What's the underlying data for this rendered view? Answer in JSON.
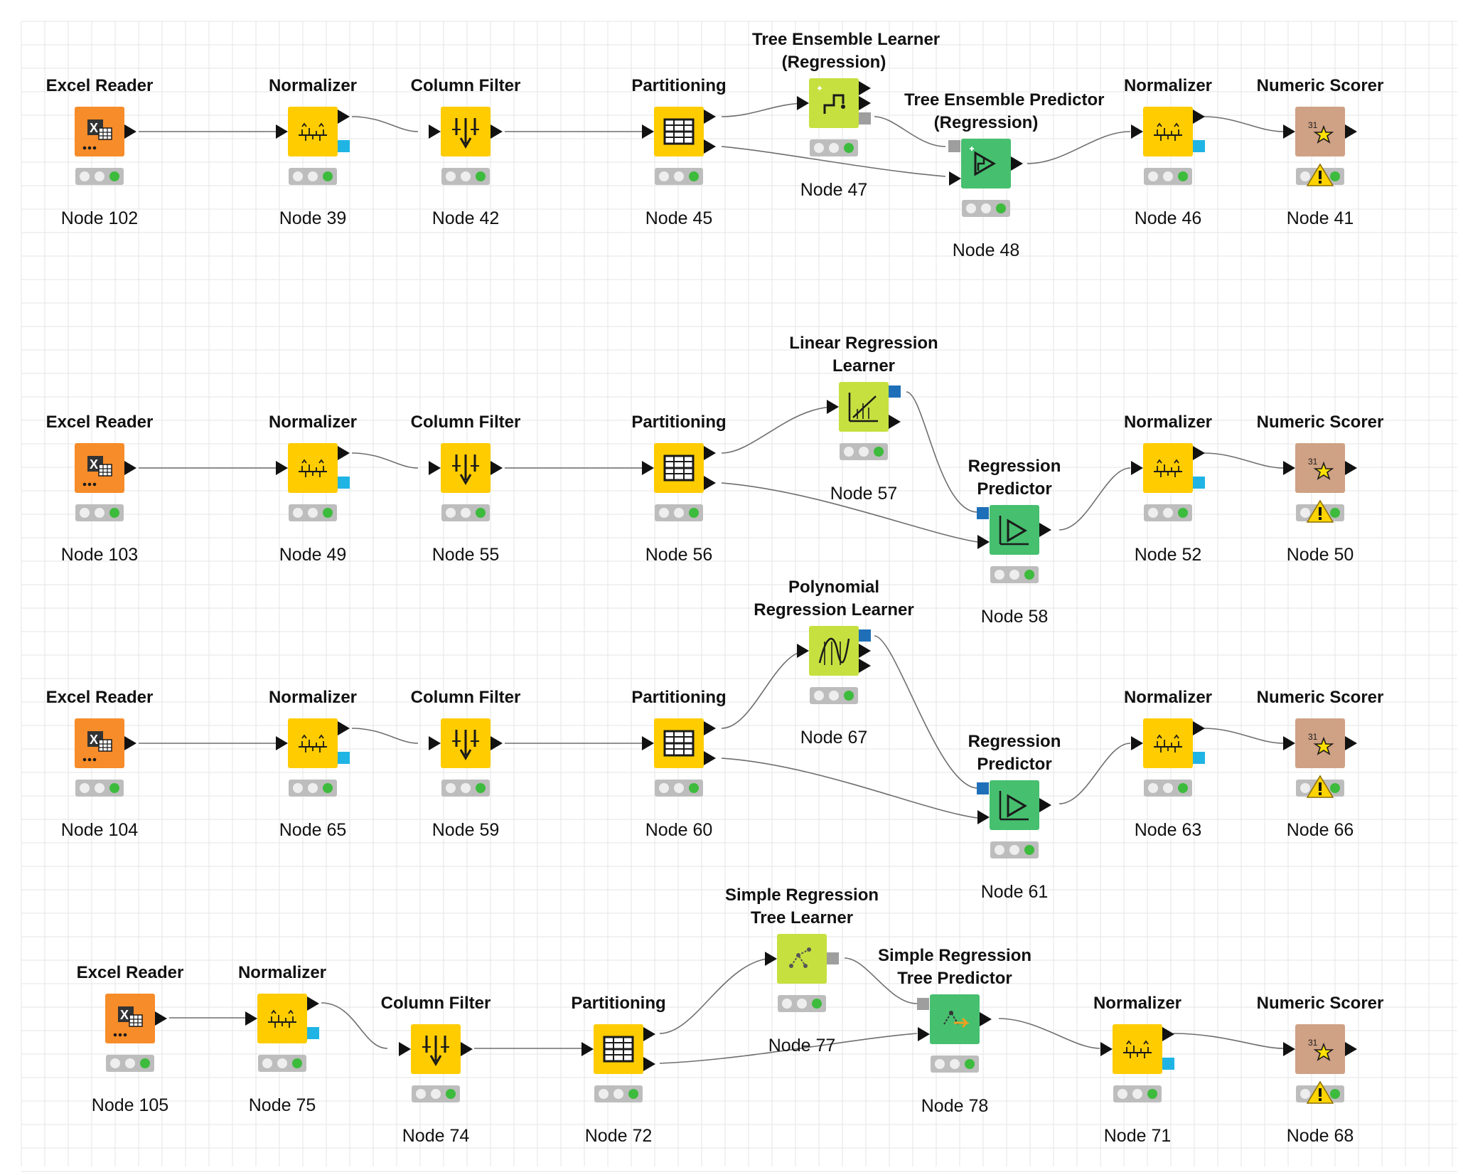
{
  "workflow": {
    "colors": {
      "reader": "#f78c2a",
      "manipulator": "#ffcc00",
      "learner": "#c6e040",
      "predictor": "#46bf6f",
      "scorer": "#cfa185",
      "model_port_blue": "#1f6fb8",
      "flowvar_port_cyan": "#1fb4e4",
      "model_port_gray": "#9e9e9e"
    },
    "nodes": {
      "n102": {
        "title": "Excel Reader",
        "label": "Node 102",
        "type": "reader",
        "icon": "excel-reader-icon"
      },
      "n39": {
        "title": "Normalizer",
        "label": "Node 39",
        "type": "manipulator",
        "icon": "normalizer-icon"
      },
      "n42": {
        "title": "Column Filter",
        "label": "Node 42",
        "type": "manipulator",
        "icon": "column-filter-icon"
      },
      "n45": {
        "title": "Partitioning",
        "label": "Node 45",
        "type": "manipulator",
        "icon": "partitioning-icon"
      },
      "n47": {
        "title1": "Tree Ensemble Learner",
        "title2": "(Regression)",
        "label": "Node 47",
        "type": "learner",
        "icon": "tree-ensemble-learner-icon"
      },
      "n48": {
        "title1": "Tree Ensemble Predictor",
        "title2": "(Regression)",
        "label": "Node 48",
        "type": "predictor",
        "icon": "tree-ensemble-predictor-icon"
      },
      "n46": {
        "title": "Normalizer",
        "label": "Node 46",
        "type": "manipulator",
        "icon": "normalizer-icon"
      },
      "n41": {
        "title": "Numeric Scorer",
        "label": "Node 41",
        "type": "scorer",
        "icon": "numeric-scorer-icon"
      },
      "n103": {
        "title": "Excel Reader",
        "label": "Node 103",
        "type": "reader",
        "icon": "excel-reader-icon"
      },
      "n49": {
        "title": "Normalizer",
        "label": "Node 49",
        "type": "manipulator",
        "icon": "normalizer-icon"
      },
      "n55": {
        "title": "Column Filter",
        "label": "Node 55",
        "type": "manipulator",
        "icon": "column-filter-icon"
      },
      "n56": {
        "title": "Partitioning",
        "label": "Node 56",
        "type": "manipulator",
        "icon": "partitioning-icon"
      },
      "n57": {
        "title1": "Linear Regression",
        "title2": "Learner",
        "label": "Node 57",
        "type": "learner",
        "icon": "linear-regression-learner-icon"
      },
      "n58": {
        "title1": "Regression",
        "title2": "Predictor",
        "label": "Node 58",
        "type": "predictor",
        "icon": "regression-predictor-icon"
      },
      "n52": {
        "title": "Normalizer",
        "label": "Node 52",
        "type": "manipulator",
        "icon": "normalizer-icon"
      },
      "n50": {
        "title": "Numeric Scorer",
        "label": "Node 50",
        "type": "scorer",
        "icon": "numeric-scorer-icon"
      },
      "n104": {
        "title": "Excel Reader",
        "label": "Node 104",
        "type": "reader",
        "icon": "excel-reader-icon"
      },
      "n65": {
        "title": "Normalizer",
        "label": "Node 65",
        "type": "manipulator",
        "icon": "normalizer-icon"
      },
      "n59": {
        "title": "Column Filter",
        "label": "Node 59",
        "type": "manipulator",
        "icon": "column-filter-icon"
      },
      "n60": {
        "title": "Partitioning",
        "label": "Node 60",
        "type": "manipulator",
        "icon": "partitioning-icon"
      },
      "n67": {
        "title1": "Polynomial",
        "title2": "Regression Learner",
        "label": "Node 67",
        "type": "learner",
        "icon": "polynomial-regression-learner-icon"
      },
      "n61": {
        "title1": "Regression",
        "title2": "Predictor",
        "label": "Node 61",
        "type": "predictor",
        "icon": "regression-predictor-icon"
      },
      "n63": {
        "title": "Normalizer",
        "label": "Node 63",
        "type": "manipulator",
        "icon": "normalizer-icon"
      },
      "n66": {
        "title": "Numeric Scorer",
        "label": "Node 66",
        "type": "scorer",
        "icon": "numeric-scorer-icon"
      },
      "n105": {
        "title": "Excel Reader",
        "label": "Node 105",
        "type": "reader",
        "icon": "excel-reader-icon"
      },
      "n75": {
        "title": "Normalizer",
        "label": "Node 75",
        "type": "manipulator",
        "icon": "normalizer-icon"
      },
      "n74": {
        "title": "Column Filter",
        "label": "Node 74",
        "type": "manipulator",
        "icon": "column-filter-icon"
      },
      "n72": {
        "title": "Partitioning",
        "label": "Node 72",
        "type": "manipulator",
        "icon": "partitioning-icon"
      },
      "n77": {
        "title1": "Simple Regression",
        "title2": "Tree Learner",
        "label": "Node 77",
        "type": "learner",
        "icon": "simple-regression-tree-learner-icon"
      },
      "n78": {
        "title1": "Simple Regression",
        "title2": "Tree Predictor",
        "label": "Node 78",
        "type": "predictor",
        "icon": "simple-regression-tree-predictor-icon"
      },
      "n71": {
        "title": "Normalizer",
        "label": "Node 71",
        "type": "manipulator",
        "icon": "normalizer-icon"
      },
      "n68": {
        "title": "Numeric Scorer",
        "label": "Node 68",
        "type": "scorer",
        "icon": "numeric-scorer-icon"
      }
    }
  }
}
